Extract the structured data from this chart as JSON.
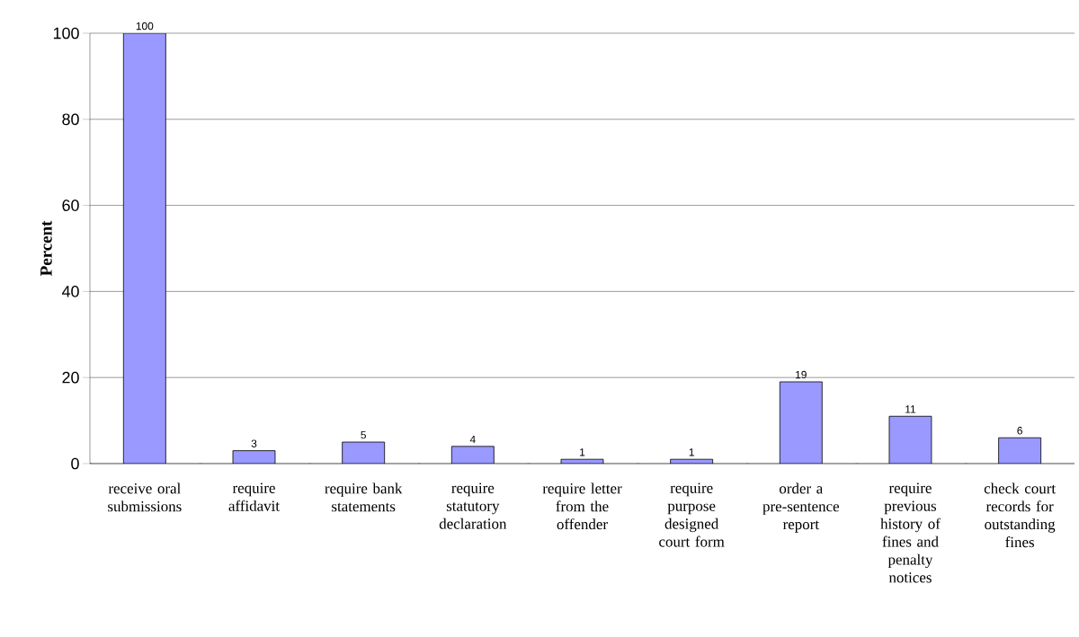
{
  "chart_data": {
    "type": "bar",
    "ylabel": "Percent",
    "categories": [
      "receive oral submissions",
      "require affidavit",
      "require bank statements",
      "require statutory declaration",
      "require letter from the offender",
      "require purpose designed court form",
      "order a pre-sentence report",
      "require previous history of fines and penalty notices",
      "check court records for outstanding fines"
    ],
    "values": [
      100,
      3,
      5,
      4,
      1,
      1,
      19,
      11,
      6
    ],
    "color": "#9999ff",
    "ylim": [
      0,
      100
    ],
    "yticks": [
      0,
      20,
      40,
      60,
      80,
      100
    ],
    "grid": "y",
    "data_labels": true
  }
}
